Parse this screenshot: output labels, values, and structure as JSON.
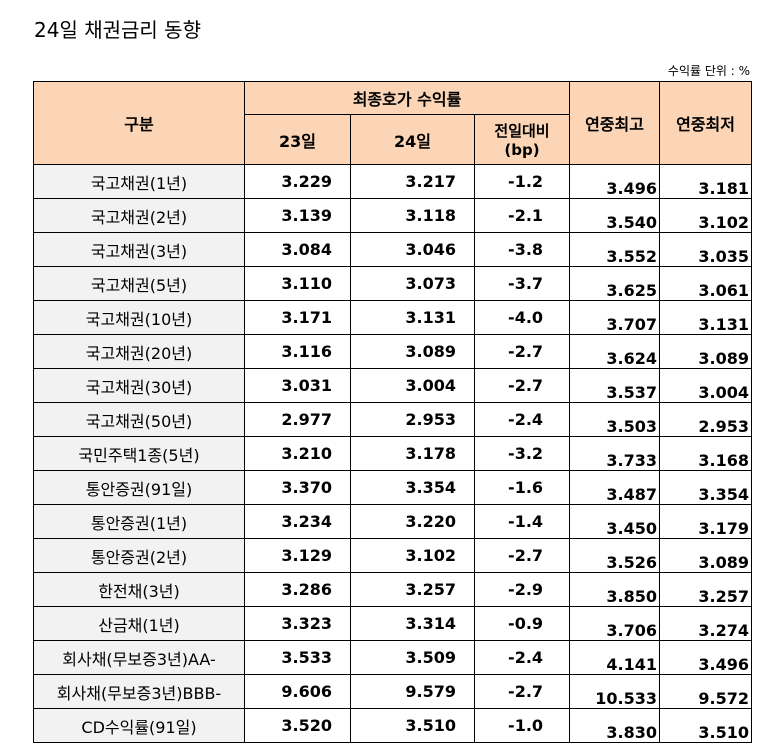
{
  "title": "24일 채권금리 동향",
  "unit_note": "수익률 단위 : %",
  "header": {
    "category": "구분",
    "closing_group": "최종호가 수익률",
    "day1": "23일",
    "day2": "24일",
    "change_line1": "전일대비",
    "change_line2": "(bp)",
    "year_high": "연중최고",
    "year_low": "연중최저"
  },
  "rows": [
    {
      "name": "국고채권(1년)",
      "d23": "3.229",
      "d24": "3.217",
      "change": "-1.2",
      "high": "3.496",
      "low": "3.181"
    },
    {
      "name": "국고채권(2년)",
      "d23": "3.139",
      "d24": "3.118",
      "change": "-2.1",
      "high": "3.540",
      "low": "3.102"
    },
    {
      "name": "국고채권(3년)",
      "d23": "3.084",
      "d24": "3.046",
      "change": "-3.8",
      "high": "3.552",
      "low": "3.035"
    },
    {
      "name": "국고채권(5년)",
      "d23": "3.110",
      "d24": "3.073",
      "change": "-3.7",
      "high": "3.625",
      "low": "3.061"
    },
    {
      "name": "국고채권(10년)",
      "d23": "3.171",
      "d24": "3.131",
      "change": "-4.0",
      "high": "3.707",
      "low": "3.131"
    },
    {
      "name": "국고채권(20년)",
      "d23": "3.116",
      "d24": "3.089",
      "change": "-2.7",
      "high": "3.624",
      "low": "3.089"
    },
    {
      "name": "국고채권(30년)",
      "d23": "3.031",
      "d24": "3.004",
      "change": "-2.7",
      "high": "3.537",
      "low": "3.004"
    },
    {
      "name": "국고채권(50년)",
      "d23": "2.977",
      "d24": "2.953",
      "change": "-2.4",
      "high": "3.503",
      "low": "2.953"
    },
    {
      "name": "국민주택1종(5년)",
      "d23": "3.210",
      "d24": "3.178",
      "change": "-3.2",
      "high": "3.733",
      "low": "3.168"
    },
    {
      "name": "통안증권(91일)",
      "d23": "3.370",
      "d24": "3.354",
      "change": "-1.6",
      "high": "3.487",
      "low": "3.354"
    },
    {
      "name": "통안증권(1년)",
      "d23": "3.234",
      "d24": "3.220",
      "change": "-1.4",
      "high": "3.450",
      "low": "3.179"
    },
    {
      "name": "통안증권(2년)",
      "d23": "3.129",
      "d24": "3.102",
      "change": "-2.7",
      "high": "3.526",
      "low": "3.089"
    },
    {
      "name": "한전채(3년)",
      "d23": "3.286",
      "d24": "3.257",
      "change": "-2.9",
      "high": "3.850",
      "low": "3.257"
    },
    {
      "name": "산금채(1년)",
      "d23": "3.323",
      "d24": "3.314",
      "change": "-0.9",
      "high": "3.706",
      "low": "3.274"
    },
    {
      "name": "회사채(무보증3년)AA-",
      "d23": "3.533",
      "d24": "3.509",
      "change": "-2.4",
      "high": "4.141",
      "low": "3.496"
    },
    {
      "name": "회사채(무보증3년)BBB-",
      "d23": "9.606",
      "d24": "9.579",
      "change": "-2.7",
      "high": "10.533",
      "low": "9.572"
    },
    {
      "name": "CD수익률(91일)",
      "d23": "3.520",
      "d24": "3.510",
      "change": "-1.0",
      "high": "3.830",
      "low": "3.510"
    }
  ]
}
